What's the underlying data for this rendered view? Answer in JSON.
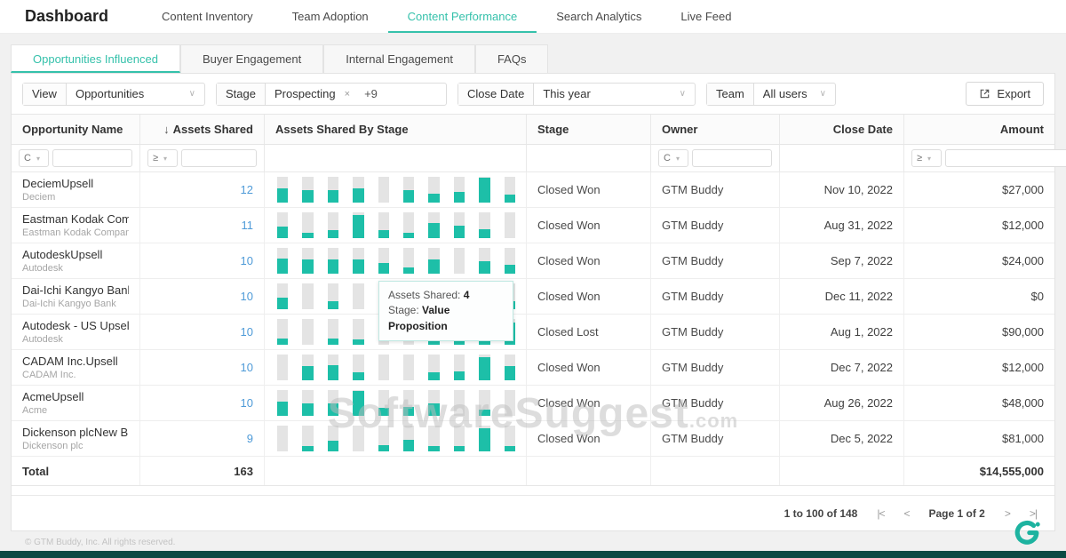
{
  "nav": {
    "title": "Dashboard",
    "items": [
      {
        "label": "Content Inventory",
        "active": false
      },
      {
        "label": "Team Adoption",
        "active": false
      },
      {
        "label": "Content Performance",
        "active": true
      },
      {
        "label": "Search Analytics",
        "active": false
      },
      {
        "label": "Live Feed",
        "active": false
      }
    ]
  },
  "tabs": [
    {
      "label": "Opportunities Influenced",
      "active": true
    },
    {
      "label": "Buyer Engagement",
      "active": false
    },
    {
      "label": "Internal Engagement",
      "active": false
    },
    {
      "label": "FAQs",
      "active": false
    }
  ],
  "filters": {
    "view": {
      "label": "View",
      "value": "Opportunities"
    },
    "stage": {
      "label": "Stage",
      "chip": "Prospecting",
      "chip_remove": "×",
      "more": "+9"
    },
    "close_date": {
      "label": "Close Date",
      "value": "This year"
    },
    "team": {
      "label": "Team",
      "value": "All users"
    },
    "export_label": "Export"
  },
  "table": {
    "columns": {
      "name": "Opportunity Name",
      "assets": "Assets Shared",
      "assets_sort_icon": "↓",
      "by_stage": "Assets Shared By Stage",
      "stage": "Stage",
      "owner": "Owner",
      "close_date": "Close Date",
      "amount": "Amount"
    },
    "filter_operators": {
      "name": "C",
      "assets": "≥",
      "owner": "C",
      "amount": "≥"
    },
    "rows": [
      {
        "name": "DeciemUpsell",
        "company": "Deciem",
        "assets": "12",
        "bars": [
          0.55,
          0.5,
          0.5,
          0.55,
          0,
          0.5,
          0.35,
          0.4,
          0.95,
          0.3
        ],
        "stage": "Closed Won",
        "owner": "GTM Buddy",
        "close_date": "Nov 10, 2022",
        "amount": "$27,000"
      },
      {
        "name": "Eastman Kodak Compa",
        "company": "Eastman Kodak Company",
        "assets": "11",
        "bars": [
          0.45,
          0.2,
          0.3,
          0.9,
          0.3,
          0.2,
          0.6,
          0.5,
          0.35,
          0
        ],
        "stage": "Closed Won",
        "owner": "GTM Buddy",
        "close_date": "Aug 31, 2022",
        "amount": "$12,000"
      },
      {
        "name": "AutodeskUpsell",
        "company": "Autodesk",
        "assets": "10",
        "bars": [
          0.6,
          0.55,
          0.55,
          0.55,
          0.4,
          0.25,
          0.55,
          0,
          0.5,
          0.35
        ],
        "stage": "Closed Won",
        "owner": "GTM Buddy",
        "close_date": "Sep 7, 2022",
        "amount": "$24,000"
      },
      {
        "name": "Dai-Ichi Kangyo BankU",
        "company": "Dai-Ichi Kangyo Bank",
        "assets": "10",
        "bars": [
          0.45,
          0,
          0.3,
          0,
          0,
          0,
          0.85,
          0.45,
          0.8,
          0.3
        ],
        "stage": "Closed Won",
        "owner": "GTM Buddy",
        "close_date": "Dec 11, 2022",
        "amount": "$0"
      },
      {
        "name": "Autodesk - US Upsell",
        "company": "Autodesk",
        "assets": "10",
        "bars": [
          0.25,
          0,
          0.25,
          0.2,
          0,
          0,
          0.55,
          0.2,
          0.2,
          0.85
        ],
        "stage": "Closed Lost",
        "owner": "GTM Buddy",
        "close_date": "Aug 1, 2022",
        "amount": "$90,000"
      },
      {
        "name": "CADAM Inc.Upsell",
        "company": "CADAM Inc.",
        "assets": "10",
        "bars": [
          0,
          0.55,
          0.6,
          0.3,
          0,
          0,
          0.3,
          0.35,
          0.9,
          0.55
        ],
        "stage": "Closed Won",
        "owner": "GTM Buddy",
        "close_date": "Dec 7, 2022",
        "amount": "$12,000"
      },
      {
        "name": "AcmeUpsell",
        "company": "Acme",
        "assets": "10",
        "bars": [
          0.55,
          0.5,
          0.5,
          0.95,
          0.3,
          0.35,
          0.5,
          0,
          0.25,
          0
        ],
        "stage": "Closed Won",
        "owner": "GTM Buddy",
        "close_date": "Aug 26, 2022",
        "amount": "$48,000"
      },
      {
        "name": "Dickenson plcNew Bus",
        "company": "Dickenson plc",
        "assets": "9",
        "bars": [
          0,
          0.2,
          0.4,
          0,
          0.25,
          0.45,
          0.2,
          0.2,
          0.9,
          0.2
        ],
        "stage": "Closed Won",
        "owner": "GTM Buddy",
        "close_date": "Dec 5, 2022",
        "amount": "$81,000"
      }
    ],
    "total": {
      "label": "Total",
      "assets": "163",
      "amount": "$14,555,000"
    }
  },
  "tooltip": {
    "assets_label": "Assets Shared: ",
    "assets_value": "4",
    "stage_label": "Stage: ",
    "stage_value": "Value Proposition"
  },
  "pagination": {
    "range": "1 to 100 of 148",
    "first_icon": "|<",
    "prev_icon": "<",
    "page": "Page 1 of 2",
    "next_icon": ">",
    "last_icon": ">|"
  },
  "watermark": {
    "main": "SoftwareSuggest",
    "suffix": ".com"
  },
  "footer": {
    "copyright": "© GTM Buddy, Inc. All rights reserved."
  },
  "colors": {
    "accent": "#35c1ab",
    "bar_fill": "#1dbfa8",
    "link": "#4f9bd8",
    "bottom_bar": "#0c4a44"
  }
}
